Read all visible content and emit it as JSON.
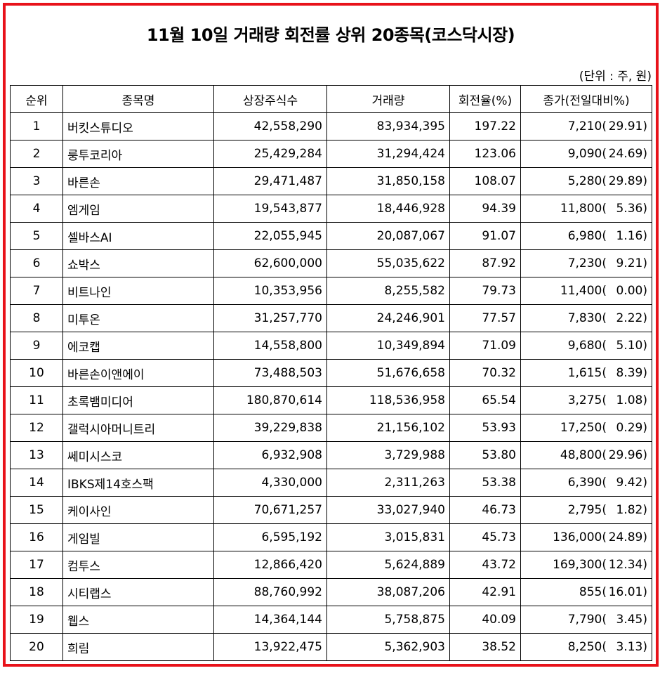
{
  "title": "11월 10일 거래량 회전률 상위 20종목(코스닥시장)",
  "unit_note": "(단위 : 주, 원)",
  "headers": [
    "순위",
    "종목명",
    "상장주식수",
    "거래량",
    "회전율(%)",
    "종가(전일대비%)"
  ],
  "rows": [
    {
      "rank": "1",
      "name": "버킷스튜디오",
      "listed": "42,558,290",
      "volume": "83,934,395",
      "turnover": "197.22",
      "close": "7,210(",
      "change": "29.91)"
    },
    {
      "rank": "2",
      "name": "룽투코리아",
      "listed": "25,429,284",
      "volume": "31,294,424",
      "turnover": "123.06",
      "close": "9,090(",
      "change": "24.69)"
    },
    {
      "rank": "3",
      "name": "바른손",
      "listed": "29,471,487",
      "volume": "31,850,158",
      "turnover": "108.07",
      "close": "5,280(",
      "change": "29.89)"
    },
    {
      "rank": "4",
      "name": "엠게임",
      "listed": "19,543,877",
      "volume": "18,446,928",
      "turnover": "94.39",
      "close": "11,800(",
      "change": "5.36)"
    },
    {
      "rank": "5",
      "name": "셀바스AI",
      "listed": "22,055,945",
      "volume": "20,087,067",
      "turnover": "91.07",
      "close": "6,980(",
      "change": "1.16)"
    },
    {
      "rank": "6",
      "name": "쇼박스",
      "listed": "62,600,000",
      "volume": "55,035,622",
      "turnover": "87.92",
      "close": "7,230(",
      "change": "9.21)"
    },
    {
      "rank": "7",
      "name": "비트나인",
      "listed": "10,353,956",
      "volume": "8,255,582",
      "turnover": "79.73",
      "close": "11,400(",
      "change": "0.00)"
    },
    {
      "rank": "8",
      "name": "미투온",
      "listed": "31,257,770",
      "volume": "24,246,901",
      "turnover": "77.57",
      "close": "7,830(",
      "change": "2.22)"
    },
    {
      "rank": "9",
      "name": "에코캡",
      "listed": "14,558,800",
      "volume": "10,349,894",
      "turnover": "71.09",
      "close": "9,680(",
      "change": "5.10)"
    },
    {
      "rank": "10",
      "name": "바른손이앤에이",
      "listed": "73,488,503",
      "volume": "51,676,658",
      "turnover": "70.32",
      "close": "1,615(",
      "change": "8.39)"
    },
    {
      "rank": "11",
      "name": "초록뱀미디어",
      "listed": "180,870,614",
      "volume": "118,536,958",
      "turnover": "65.54",
      "close": "3,275(",
      "change": "1.08)"
    },
    {
      "rank": "12",
      "name": "갤럭시아머니트리",
      "listed": "39,229,838",
      "volume": "21,156,102",
      "turnover": "53.93",
      "close": "17,250(",
      "change": "0.29)"
    },
    {
      "rank": "13",
      "name": "쎄미시스코",
      "listed": "6,932,908",
      "volume": "3,729,988",
      "turnover": "53.80",
      "close": "48,800(",
      "change": "29.96)"
    },
    {
      "rank": "14",
      "name": "IBKS제14호스팩",
      "listed": "4,330,000",
      "volume": "2,311,263",
      "turnover": "53.38",
      "close": "6,390(",
      "change": "9.42)"
    },
    {
      "rank": "15",
      "name": "케이사인",
      "listed": "70,671,257",
      "volume": "33,027,940",
      "turnover": "46.73",
      "close": "2,795(",
      "change": "1.82)"
    },
    {
      "rank": "16",
      "name": "게임빌",
      "listed": "6,595,192",
      "volume": "3,015,831",
      "turnover": "45.73",
      "close": "136,000(",
      "change": "24.89)"
    },
    {
      "rank": "17",
      "name": "컴투스",
      "listed": "12,866,420",
      "volume": "5,624,889",
      "turnover": "43.72",
      "close": "169,300(",
      "change": "12.34)"
    },
    {
      "rank": "18",
      "name": "시티랩스",
      "listed": "88,760,992",
      "volume": "38,087,206",
      "turnover": "42.91",
      "close": "855(",
      "change": "16.01)"
    },
    {
      "rank": "19",
      "name": "웹스",
      "listed": "14,364,144",
      "volume": "5,758,875",
      "turnover": "40.09",
      "close": "7,790(",
      "change": "3.45)"
    },
    {
      "rank": "20",
      "name": "희림",
      "listed": "13,922,475",
      "volume": "5,362,903",
      "turnover": "38.52",
      "close": "8,250(",
      "change": "3.13)"
    }
  ],
  "colors": {
    "frame_border": "#e8121a"
  }
}
